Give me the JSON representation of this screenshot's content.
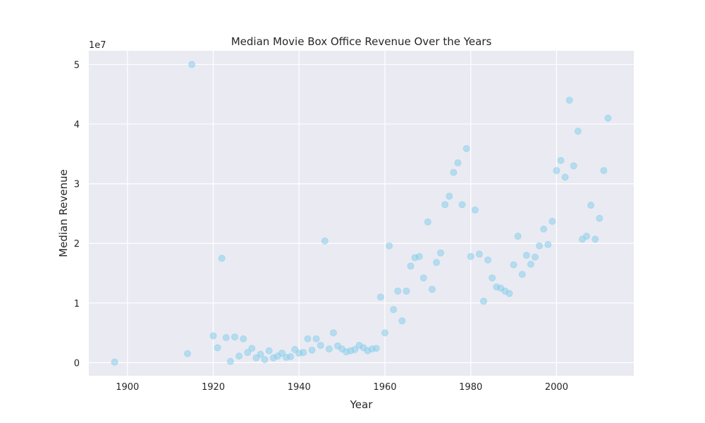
{
  "chart_data": {
    "type": "scatter",
    "title": "Median Movie Box Office Revenue Over the Years",
    "xlabel": "Year",
    "ylabel": "Median Revenue",
    "y_scale_label": "1e7",
    "xlim": [
      1891,
      2018
    ],
    "ylim": [
      -2200000,
      52300000
    ],
    "x_ticks": [
      1900,
      1920,
      1940,
      1960,
      1980,
      2000
    ],
    "y_ticks": [
      0,
      10000000,
      20000000,
      30000000,
      40000000,
      50000000
    ],
    "y_tick_labels": [
      "0",
      "1",
      "2",
      "3",
      "4",
      "5"
    ],
    "grid": true,
    "point_color": "#87ceeb",
    "background_color": "#eaeaf2",
    "series": [
      {
        "x": [
          1897,
          1914,
          1915,
          1920,
          1921,
          1922,
          1923,
          1924,
          1925,
          1926,
          1927,
          1928,
          1929,
          1930,
          1931,
          1932,
          1933,
          1934,
          1935,
          1936,
          1937,
          1938,
          1939,
          1940,
          1941,
          1942,
          1943,
          1944,
          1945,
          1946,
          1947,
          1948,
          1949,
          1950,
          1951,
          1952,
          1953,
          1954,
          1955,
          1956,
          1957,
          1958,
          1959,
          1960,
          1961,
          1962,
          1963,
          1964,
          1965,
          1966,
          1967,
          1968,
          1969,
          1970,
          1971,
          1972,
          1973,
          1974,
          1975,
          1976,
          1977,
          1978,
          1979,
          1980,
          1981,
          1982,
          1983,
          1984,
          1985,
          1986,
          1987,
          1988,
          1989,
          1990,
          1991,
          1992,
          1993,
          1994,
          1995,
          1996,
          1997,
          1998,
          1999,
          2000,
          2001,
          2002,
          2003,
          2004,
          2005,
          2006,
          2007,
          2008,
          2009,
          2010,
          2011,
          2012
        ],
        "y": [
          100000,
          1500000,
          50000000,
          4500000,
          2500000,
          17500000,
          4200000,
          200000,
          4300000,
          1100000,
          4000000,
          1700000,
          2400000,
          800000,
          1400000,
          500000,
          2000000,
          800000,
          1100000,
          1600000,
          900000,
          1000000,
          2200000,
          1600000,
          1700000,
          4000000,
          2100000,
          4000000,
          2900000,
          20400000,
          2300000,
          5000000,
          2800000,
          2300000,
          1800000,
          2000000,
          2200000,
          2900000,
          2500000,
          2000000,
          2300000,
          2400000,
          11000000,
          5000000,
          19600000,
          8900000,
          12000000,
          7000000,
          12000000,
          16200000,
          17600000,
          17800000,
          14200000,
          23600000,
          12300000,
          16800000,
          18400000,
          26500000,
          27900000,
          31900000,
          33500000,
          26500000,
          35900000,
          17800000,
          25600000,
          18200000,
          10300000,
          17200000,
          14200000,
          12700000,
          12500000,
          12000000,
          11600000,
          16400000,
          21200000,
          14800000,
          18000000,
          16500000,
          17700000,
          19600000,
          22400000,
          19800000,
          23700000,
          32200000,
          33900000,
          31100000,
          44000000,
          33000000,
          38800000,
          20700000,
          21200000,
          26400000,
          20700000,
          24200000,
          32200000,
          41000000
        ]
      }
    ]
  }
}
